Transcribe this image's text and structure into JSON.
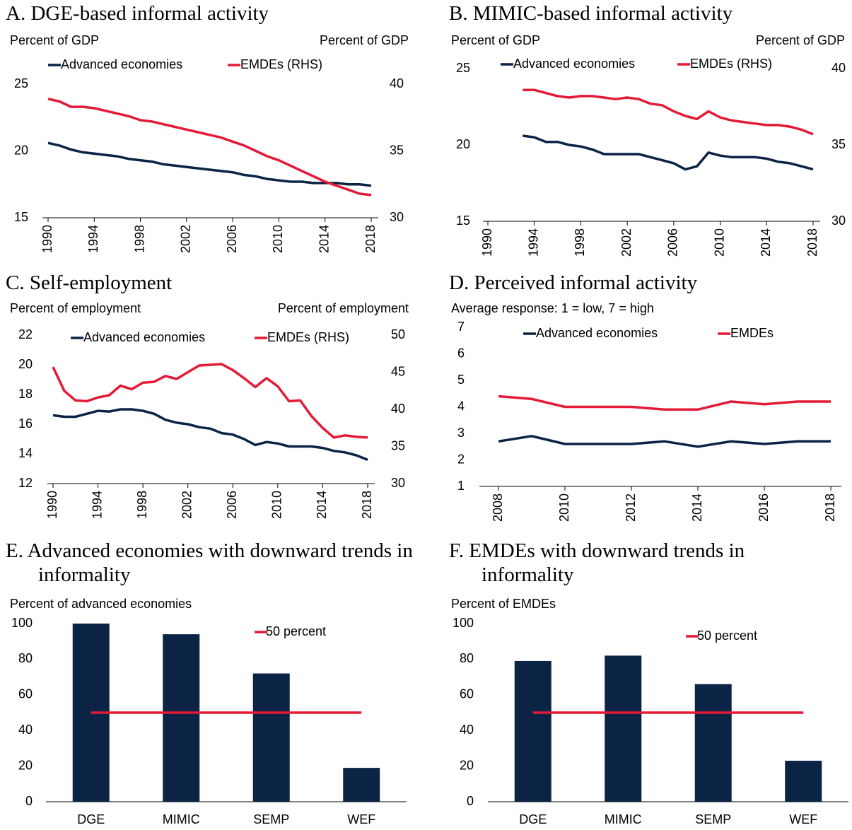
{
  "chart_data": [
    {
      "type": "line",
      "title": "A. DGE-based informal activity",
      "y_label": "Percent of GDP",
      "y2_label": "Percent of GDP",
      "x": [
        1990,
        1991,
        1992,
        1993,
        1994,
        1995,
        1996,
        1997,
        1998,
        1999,
        2000,
        2001,
        2002,
        2003,
        2004,
        2005,
        2006,
        2007,
        2008,
        2009,
        2010,
        2011,
        2012,
        2013,
        2014,
        2015,
        2016,
        2017,
        2018
      ],
      "xlim": [
        1990,
        2018
      ],
      "xticks": [
        1990,
        1994,
        1998,
        2002,
        2006,
        2010,
        2014,
        2018
      ],
      "ylim": [
        15,
        25
      ],
      "yticks": [
        15,
        20,
        25
      ],
      "y2lim": [
        30,
        40
      ],
      "y2ticks": [
        30,
        35,
        40
      ],
      "series": [
        {
          "name": "Advanced economies",
          "color": "#0b2345",
          "values": [
            20.6,
            20.4,
            20.1,
            19.9,
            19.8,
            19.7,
            19.6,
            19.4,
            19.3,
            19.2,
            19.0,
            18.9,
            18.8,
            18.7,
            18.6,
            18.5,
            18.4,
            18.2,
            18.1,
            17.9,
            17.8,
            17.7,
            17.7,
            17.6,
            17.6,
            17.6,
            17.5,
            17.5,
            17.4
          ]
        },
        {
          "name": "EMDEs (RHS)",
          "color": "#e31b37",
          "axis": "y2",
          "values": [
            38.9,
            38.7,
            38.3,
            38.3,
            38.2,
            38.0,
            37.8,
            37.6,
            37.3,
            37.2,
            37.0,
            36.8,
            36.6,
            36.4,
            36.2,
            36.0,
            35.7,
            35.4,
            35.0,
            34.6,
            34.3,
            33.9,
            33.5,
            33.1,
            32.7,
            32.4,
            32.1,
            31.8,
            31.7
          ]
        }
      ]
    },
    {
      "type": "line",
      "title": "B. MIMIC-based informal activity",
      "y_label": "Percent of GDP",
      "y2_label": "Percent of GDP",
      "x": [
        1993,
        1994,
        1995,
        1996,
        1997,
        1998,
        1999,
        2000,
        2001,
        2002,
        2003,
        2004,
        2005,
        2006,
        2007,
        2008,
        2009,
        2010,
        2011,
        2012,
        2013,
        2014,
        2015,
        2016,
        2017,
        2018
      ],
      "xlim": [
        1990,
        2018
      ],
      "xticks": [
        1990,
        1994,
        1998,
        2002,
        2006,
        2010,
        2014,
        2018
      ],
      "ylim": [
        15,
        25
      ],
      "yticks": [
        15,
        20,
        25
      ],
      "y2lim": [
        30,
        40
      ],
      "y2ticks": [
        30,
        35,
        40
      ],
      "series": [
        {
          "name": "Advanced economies",
          "color": "#0b2345",
          "values": [
            20.6,
            20.5,
            20.2,
            20.2,
            20.0,
            19.9,
            19.7,
            19.4,
            19.4,
            19.4,
            19.4,
            19.2,
            19.0,
            18.8,
            18.4,
            18.6,
            19.5,
            19.3,
            19.2,
            19.2,
            19.2,
            19.1,
            18.9,
            18.8,
            18.6,
            18.4
          ]
        },
        {
          "name": "EMDEs (RHS)",
          "color": "#e31b37",
          "axis": "y2",
          "values": [
            38.6,
            38.6,
            38.4,
            38.2,
            38.1,
            38.2,
            38.2,
            38.1,
            38.0,
            38.1,
            38.0,
            37.7,
            37.6,
            37.2,
            36.9,
            36.7,
            37.2,
            36.8,
            36.6,
            36.5,
            36.4,
            36.3,
            36.3,
            36.2,
            36.0,
            35.7
          ]
        }
      ]
    },
    {
      "type": "line",
      "title": "C. Self-employment",
      "y_label": "Percent of employment",
      "y2_label": "Percent of employment",
      "x": [
        1990,
        1991,
        1992,
        1993,
        1994,
        1995,
        1996,
        1997,
        1998,
        1999,
        2000,
        2001,
        2002,
        2003,
        2004,
        2005,
        2006,
        2007,
        2008,
        2009,
        2010,
        2011,
        2012,
        2013,
        2014,
        2015,
        2016,
        2017,
        2018
      ],
      "xlim": [
        1990,
        2018
      ],
      "xticks": [
        1990,
        1994,
        1998,
        2002,
        2006,
        2010,
        2014,
        2018
      ],
      "ylim": [
        12,
        22
      ],
      "yticks": [
        12,
        14,
        16,
        18,
        20,
        22
      ],
      "y2lim": [
        30,
        50
      ],
      "y2ticks": [
        30,
        35,
        40,
        45,
        50
      ],
      "series": [
        {
          "name": "Advanced economies",
          "color": "#0b2345",
          "values": [
            16.6,
            16.5,
            16.5,
            16.7,
            16.9,
            16.85,
            17.0,
            17.0,
            16.9,
            16.7,
            16.3,
            16.1,
            16.0,
            15.8,
            15.7,
            15.4,
            15.3,
            15.0,
            14.6,
            14.8,
            14.7,
            14.5,
            14.5,
            14.5,
            14.4,
            14.2,
            14.1,
            13.9,
            13.6
          ]
        },
        {
          "name": "EMDEs (RHS)",
          "color": "#e31b37",
          "axis": "y2",
          "values": [
            45.7,
            42.5,
            41.2,
            41.1,
            41.6,
            41.9,
            43.2,
            42.7,
            43.6,
            43.7,
            44.5,
            44.1,
            45.0,
            45.9,
            46.0,
            46.1,
            45.3,
            44.2,
            43.0,
            44.2,
            43.1,
            41.1,
            41.2,
            39.1,
            37.5,
            36.2,
            36.5,
            36.3,
            36.2
          ]
        }
      ]
    },
    {
      "type": "line",
      "title": "D. Perceived informal activity",
      "y_label": "Average response: 1 = low, 7 = high",
      "x": [
        2008,
        2009,
        2010,
        2011,
        2012,
        2013,
        2014,
        2015,
        2016,
        2017,
        2018
      ],
      "xlim": [
        2008,
        2018
      ],
      "xticks": [
        2008,
        2010,
        2012,
        2014,
        2016,
        2018
      ],
      "ylim": [
        1,
        7
      ],
      "yticks": [
        1,
        2,
        3,
        4,
        5,
        6,
        7
      ],
      "series": [
        {
          "name": "Advanced economies",
          "color": "#0b2345",
          "values": [
            2.7,
            2.9,
            2.6,
            2.6,
            2.6,
            2.7,
            2.5,
            2.7,
            2.6,
            2.7,
            2.7
          ]
        },
        {
          "name": "EMDEs",
          "color": "#e31b37",
          "values": [
            4.4,
            4.3,
            4.0,
            4.0,
            4.0,
            3.9,
            3.9,
            4.2,
            4.1,
            4.2,
            4.2
          ]
        }
      ]
    },
    {
      "type": "bar",
      "title": "E. Advanced economies with downward trends in informality",
      "y_label": "Percent of advanced economies",
      "categories": [
        "DGE",
        "MIMIC",
        "SEMP",
        "WEF"
      ],
      "values": [
        100,
        94,
        72,
        19
      ],
      "color": "#0b2345",
      "ylim": [
        0,
        100
      ],
      "yticks": [
        0,
        20,
        40,
        60,
        80,
        100
      ],
      "reference_line": {
        "name": "50 percent",
        "value": 50,
        "color": "#e31b37"
      }
    },
    {
      "type": "bar",
      "title": "F. EMDEs with downward trends in informality",
      "y_label": "Percent of EMDEs",
      "categories": [
        "DGE",
        "MIMIC",
        "SEMP",
        "WEF"
      ],
      "values": [
        79,
        82,
        66,
        23
      ],
      "color": "#0b2345",
      "ylim": [
        0,
        100
      ],
      "yticks": [
        0,
        20,
        40,
        60,
        80,
        100
      ],
      "reference_line": {
        "name": "50 percent",
        "value": 50,
        "color": "#e31b37"
      }
    }
  ]
}
